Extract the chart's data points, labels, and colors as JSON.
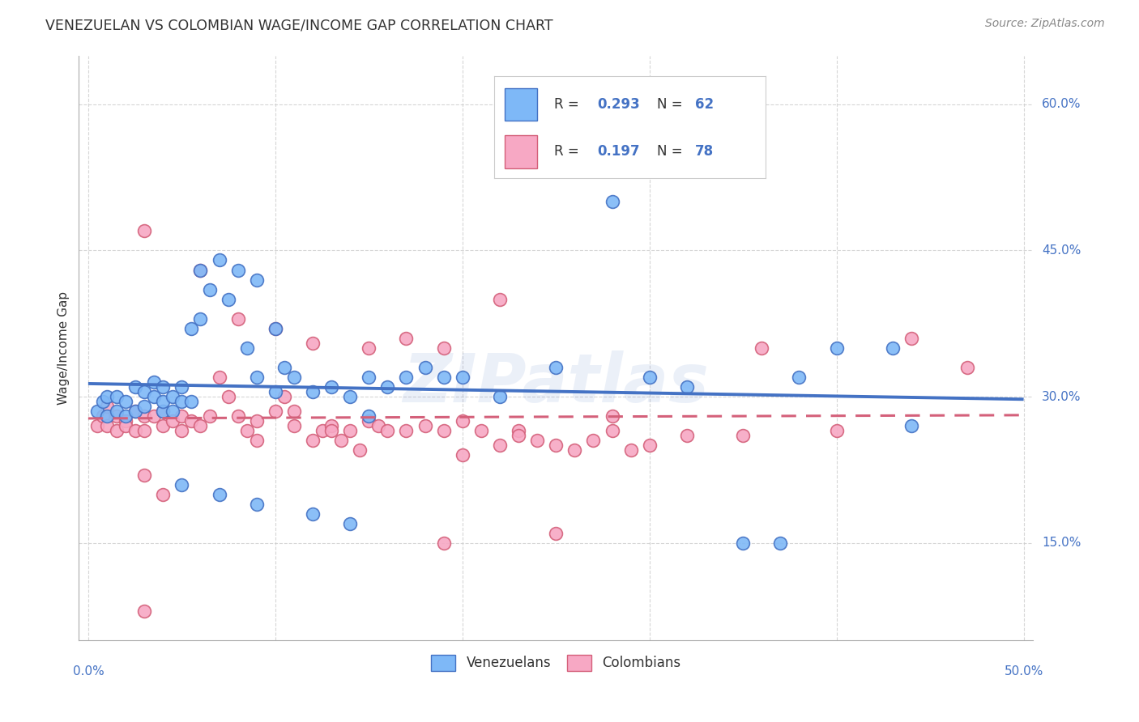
{
  "title": "VENEZUELAN VS COLOMBIAN WAGE/INCOME GAP CORRELATION CHART",
  "source": "Source: ZipAtlas.com",
  "ylabel": "Wage/Income Gap",
  "watermark": "ZIPatlas",
  "legend_label1": "Venezuelans",
  "legend_label2": "Colombians",
  "legend_R1": "R = 0.293",
  "legend_N1": "N = 62",
  "legend_R2": "R = 0.197",
  "legend_N2": "N = 78",
  "color_venezuelan": "#7EB8F7",
  "color_colombian": "#F7A8C4",
  "color_line_venezuelan": "#4472C4",
  "color_line_colombian": "#D4607A",
  "background_color": "#FFFFFF",
  "xlim": [
    0.0,
    0.5
  ],
  "ylim": [
    0.05,
    0.65
  ],
  "yticks": [
    0.15,
    0.3,
    0.45,
    0.6
  ],
  "ytick_labels": [
    "15.0%",
    "30.0%",
    "45.0%",
    "60.0%"
  ],
  "xtick_labels": [
    "0.0%",
    "50.0%"
  ],
  "venezuelan_x": [
    0.005,
    0.008,
    0.01,
    0.01,
    0.015,
    0.015,
    0.02,
    0.02,
    0.025,
    0.025,
    0.03,
    0.03,
    0.035,
    0.035,
    0.04,
    0.04,
    0.04,
    0.045,
    0.045,
    0.05,
    0.05,
    0.055,
    0.055,
    0.06,
    0.06,
    0.065,
    0.07,
    0.075,
    0.08,
    0.085,
    0.09,
    0.09,
    0.1,
    0.1,
    0.105,
    0.11,
    0.12,
    0.13,
    0.14,
    0.15,
    0.15,
    0.16,
    0.17,
    0.18,
    0.19,
    0.2,
    0.22,
    0.25,
    0.28,
    0.3,
    0.32,
    0.35,
    0.37,
    0.38,
    0.4,
    0.05,
    0.07,
    0.09,
    0.12,
    0.14,
    0.43,
    0.44
  ],
  "venezuelan_y": [
    0.285,
    0.295,
    0.3,
    0.28,
    0.3,
    0.285,
    0.295,
    0.28,
    0.31,
    0.285,
    0.305,
    0.29,
    0.315,
    0.3,
    0.285,
    0.295,
    0.31,
    0.3,
    0.285,
    0.295,
    0.31,
    0.37,
    0.295,
    0.38,
    0.43,
    0.41,
    0.44,
    0.4,
    0.43,
    0.35,
    0.42,
    0.32,
    0.37,
    0.305,
    0.33,
    0.32,
    0.305,
    0.31,
    0.3,
    0.32,
    0.28,
    0.31,
    0.32,
    0.33,
    0.32,
    0.32,
    0.3,
    0.33,
    0.5,
    0.32,
    0.31,
    0.15,
    0.15,
    0.32,
    0.35,
    0.21,
    0.2,
    0.19,
    0.18,
    0.17,
    0.35,
    0.27
  ],
  "colombian_x": [
    0.005,
    0.008,
    0.01,
    0.01,
    0.015,
    0.015,
    0.02,
    0.02,
    0.025,
    0.025,
    0.03,
    0.03,
    0.035,
    0.04,
    0.04,
    0.045,
    0.05,
    0.05,
    0.055,
    0.06,
    0.065,
    0.07,
    0.075,
    0.08,
    0.085,
    0.09,
    0.09,
    0.1,
    0.105,
    0.11,
    0.11,
    0.12,
    0.125,
    0.13,
    0.135,
    0.14,
    0.145,
    0.15,
    0.155,
    0.16,
    0.17,
    0.18,
    0.19,
    0.2,
    0.21,
    0.22,
    0.23,
    0.24,
    0.25,
    0.26,
    0.27,
    0.28,
    0.29,
    0.3,
    0.06,
    0.08,
    0.1,
    0.12,
    0.15,
    0.17,
    0.19,
    0.22,
    0.35,
    0.36,
    0.44,
    0.47,
    0.03,
    0.04,
    0.28,
    0.32,
    0.2,
    0.25,
    0.4,
    0.03,
    0.13,
    0.19,
    0.23,
    0.03
  ],
  "colombian_y": [
    0.27,
    0.28,
    0.29,
    0.27,
    0.28,
    0.265,
    0.275,
    0.27,
    0.285,
    0.265,
    0.28,
    0.265,
    0.28,
    0.27,
    0.285,
    0.275,
    0.265,
    0.28,
    0.275,
    0.27,
    0.28,
    0.32,
    0.3,
    0.28,
    0.265,
    0.255,
    0.275,
    0.285,
    0.3,
    0.27,
    0.285,
    0.255,
    0.265,
    0.27,
    0.255,
    0.265,
    0.245,
    0.275,
    0.27,
    0.265,
    0.265,
    0.27,
    0.265,
    0.275,
    0.265,
    0.25,
    0.265,
    0.255,
    0.25,
    0.245,
    0.255,
    0.265,
    0.245,
    0.25,
    0.43,
    0.38,
    0.37,
    0.355,
    0.35,
    0.36,
    0.35,
    0.4,
    0.26,
    0.35,
    0.36,
    0.33,
    0.47,
    0.2,
    0.28,
    0.26,
    0.24,
    0.16,
    0.265,
    0.22,
    0.265,
    0.15,
    0.26,
    0.08
  ]
}
